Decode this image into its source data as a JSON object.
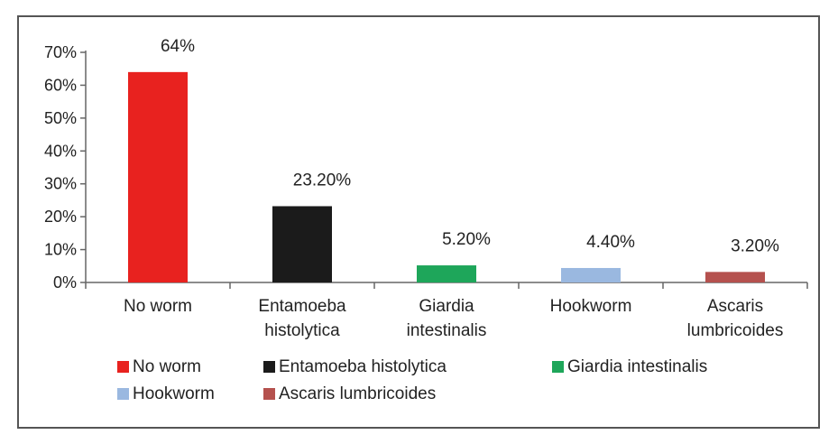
{
  "chart_data": {
    "type": "bar",
    "categories": [
      [
        "No worm"
      ],
      [
        "Entamoeba",
        "histolytica"
      ],
      [
        "Giardia",
        "intestinalis"
      ],
      [
        "Hookworm"
      ],
      [
        "Ascaris",
        "lumbricoides"
      ]
    ],
    "values": [
      64,
      23.2,
      5.2,
      4.4,
      3.2
    ],
    "data_labels": [
      "64%",
      "23.20%",
      "5.20%",
      "4.40%",
      "3.20%"
    ],
    "colors": [
      "#e8221f",
      "#1b1b1b",
      "#1ea65a",
      "#9ab8e0",
      "#b5514e"
    ],
    "ylim": [
      0,
      70
    ],
    "yticks": [
      0,
      10,
      20,
      30,
      40,
      50,
      60,
      70
    ],
    "ytick_labels": [
      "0%",
      "10%",
      "20%",
      "30%",
      "40%",
      "50%",
      "60%",
      "70%"
    ],
    "legend": {
      "placement": "bottom",
      "entries": [
        [
          "No worm",
          "Entamoeba histolytica",
          "Giardia intestinalis"
        ],
        [
          "Hookworm",
          "Ascaris lumbricoides"
        ]
      ]
    },
    "title": "",
    "xlabel": "",
    "ylabel": "",
    "grid": false
  }
}
